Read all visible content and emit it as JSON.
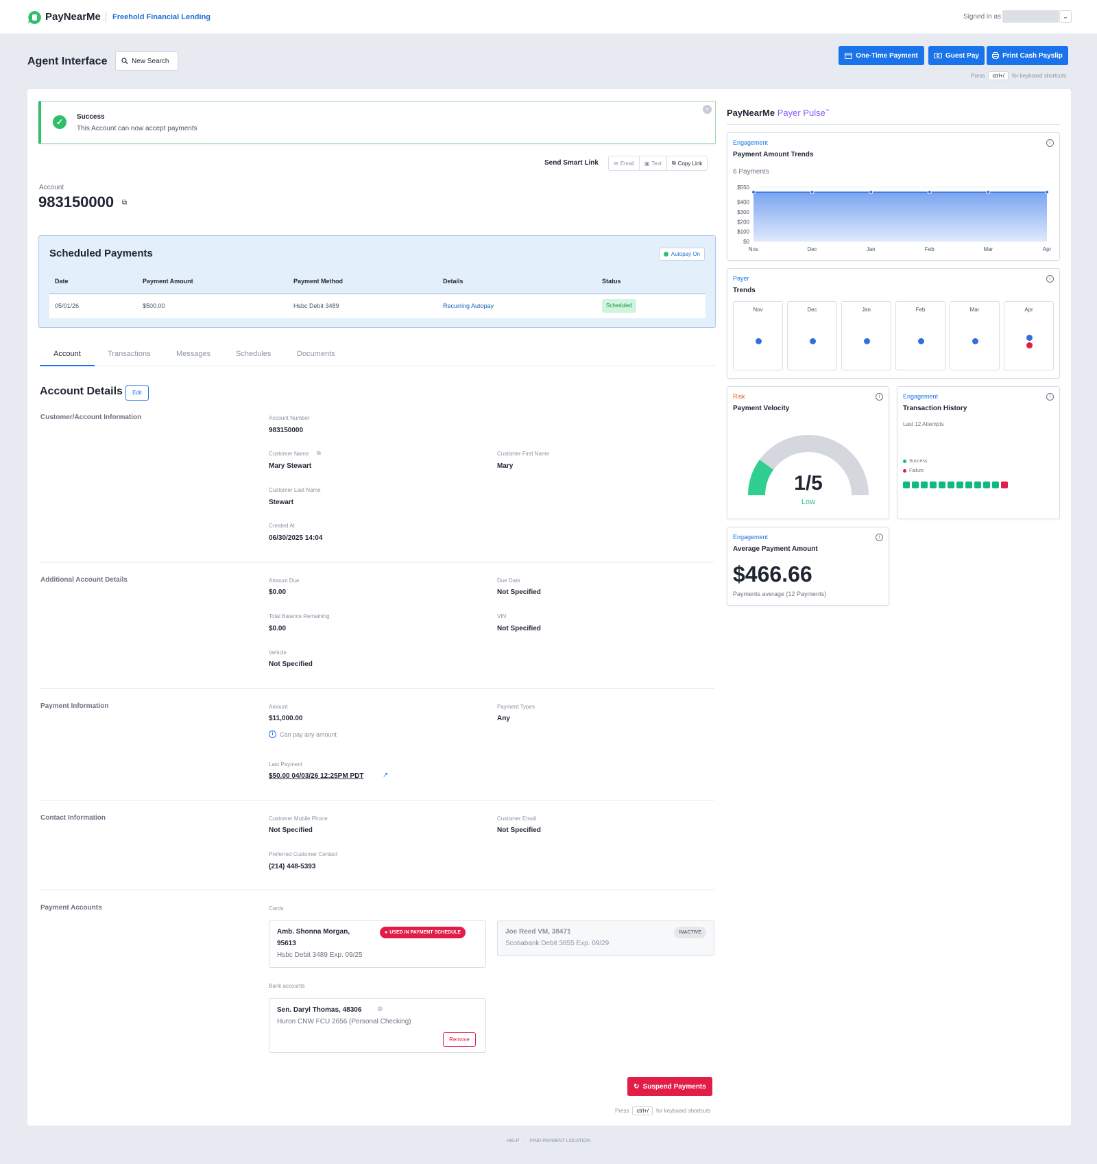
{
  "topbar": {
    "brand": "PayNearMe",
    "org": "Freehold Financial Lending",
    "signed_in": "Signed in as"
  },
  "header": {
    "title": "Agent Interface",
    "new_search": "New Search",
    "one_time": "One-Time Payment",
    "guest_pay": "Guest Pay",
    "print_cash": "Print Cash Payslip",
    "press": "Press",
    "kbd": "ctrl+/",
    "kbd_suffix": "for keyboard shortcuts"
  },
  "alert": {
    "title": "Success",
    "message": "This Account can now accept payments"
  },
  "smart_link": {
    "label": "Send Smart Link",
    "email": "Email",
    "text": "Text",
    "copy": "Copy Link"
  },
  "account": {
    "label": "Account",
    "number": "983150000"
  },
  "scheduled": {
    "title": "Scheduled Payments",
    "autopay": "Autopay On",
    "headers": [
      "Date",
      "Payment Amount",
      "Payment Method",
      "Details",
      "Status"
    ],
    "row": {
      "date": "05/01/26",
      "amount": "$500.00",
      "method": "Hsbc Debit 3489",
      "details": "Recurring Autopay",
      "status": "Scheduled"
    }
  },
  "tabs": [
    "Account",
    "Transactions",
    "Messages",
    "Schedules",
    "Documents"
  ],
  "details": {
    "title": "Account Details",
    "edit": "Edit",
    "sections": {
      "customer": "Customer/Account Information",
      "additional": "Additional Account Details",
      "payment": "Payment Information",
      "contact": "Contact Information",
      "accounts": "Payment Accounts"
    },
    "fields": {
      "account_number": {
        "label": "Account Number",
        "value": "983150000"
      },
      "customer_name": {
        "label": "Customer Name",
        "value": "Mary Stewart"
      },
      "first_name": {
        "label": "Customer First Name",
        "value": "Mary"
      },
      "last_name": {
        "label": "Customer Last Name",
        "value": "Stewart"
      },
      "created_at": {
        "label": "Created At",
        "value": "06/30/2025 14:04"
      },
      "amount_due": {
        "label": "Amount Due",
        "value": "$0.00"
      },
      "due_date": {
        "label": "Due Date",
        "value": "Not Specified"
      },
      "total_balance": {
        "label": "Total Balance Remaining",
        "value": "$0.00"
      },
      "vin": {
        "label": "VIN",
        "value": "Not Specified"
      },
      "vehicle": {
        "label": "Vehicle",
        "value": "Not Specified"
      },
      "amount": {
        "label": "Amount",
        "value": "$11,000.00"
      },
      "payment_types": {
        "label": "Payment Types",
        "value": "Any"
      },
      "can_pay": "Can pay any amount",
      "last_payment": {
        "label": "Last Payment",
        "value": "$50.00 04/03/26 12:25PM PDT"
      },
      "mobile": {
        "label": "Customer Mobile Phone",
        "value": "Not Specified"
      },
      "email": {
        "label": "Customer Email",
        "value": "Not Specified"
      },
      "preferred": {
        "label": "Preferred Customer Contact",
        "value": "(214) 448-5393"
      }
    },
    "cards_label": "Cards",
    "bank_label": "Bank accounts",
    "card1": {
      "name1": "Amb. Shonna Morgan,",
      "name2": "95613",
      "sub": "Hsbc Debit 3489 Exp. 09/25",
      "badge": "USED IN PAYMENT SCHEDULE"
    },
    "card2": {
      "name": "Joe Reed VM, 38471",
      "sub": "Scotiabank Debit 3855 Exp. 09/29",
      "badge": "INACTIVE"
    },
    "bank1": {
      "name": "Sen. Daryl Thomas, 48306",
      "sub": "Huron CNW FCU 2656 (Personal Checking)",
      "remove": "Remove"
    }
  },
  "suspend": "Suspend Payments",
  "pulse": {
    "brand": "PayNearMe",
    "product": "Payer Pulse",
    "tm": "™",
    "amount_trends": {
      "category": "Engagement",
      "title": "Payment Amount Trends",
      "subtitle": "6 Payments",
      "y_ticks": [
        "$550",
        "$400",
        "$300",
        "$200",
        "$100",
        "$0"
      ],
      "x_ticks": [
        "Nov",
        "Dec",
        "Jan",
        "Feb",
        "Mar",
        "Apr"
      ]
    },
    "payer_trends": {
      "category": "Payer",
      "title": "Trends",
      "months": [
        "Nov",
        "Dec",
        "Jan",
        "Feb",
        "Mar",
        "Apr"
      ]
    },
    "velocity": {
      "category": "Risk",
      "title": "Payment Velocity",
      "value": "1/5",
      "level": "Low",
      "score": 1,
      "max": 5
    },
    "history": {
      "category": "Engagement",
      "title": "Transaction History",
      "subtitle": "Last 12 Attempts",
      "success": "Success",
      "failure": "Failure",
      "attempts": [
        "s",
        "s",
        "s",
        "s",
        "s",
        "s",
        "s",
        "s",
        "s",
        "s",
        "s",
        "f"
      ]
    },
    "average": {
      "category": "Engagement",
      "title": "Average Payment Amount",
      "value": "$466.66",
      "subtitle": "Payments average (12 Payments)"
    }
  },
  "chart_data": {
    "type": "area",
    "categories": [
      "Nov",
      "Dec",
      "Jan",
      "Feb",
      "Mar",
      "Apr"
    ],
    "values": [
      500,
      500,
      500,
      500,
      500,
      500
    ],
    "ylim": [
      0,
      550
    ],
    "yticks": [
      0,
      100,
      200,
      300,
      400,
      550
    ]
  },
  "footer": {
    "help": "HELP",
    "find": "FIND PAYMENT LOCATION"
  },
  "colors": {
    "primary": "#1a73e8",
    "success": "#2fbf6b",
    "danger": "#e11d48",
    "pulse": "#8b5cf6"
  }
}
